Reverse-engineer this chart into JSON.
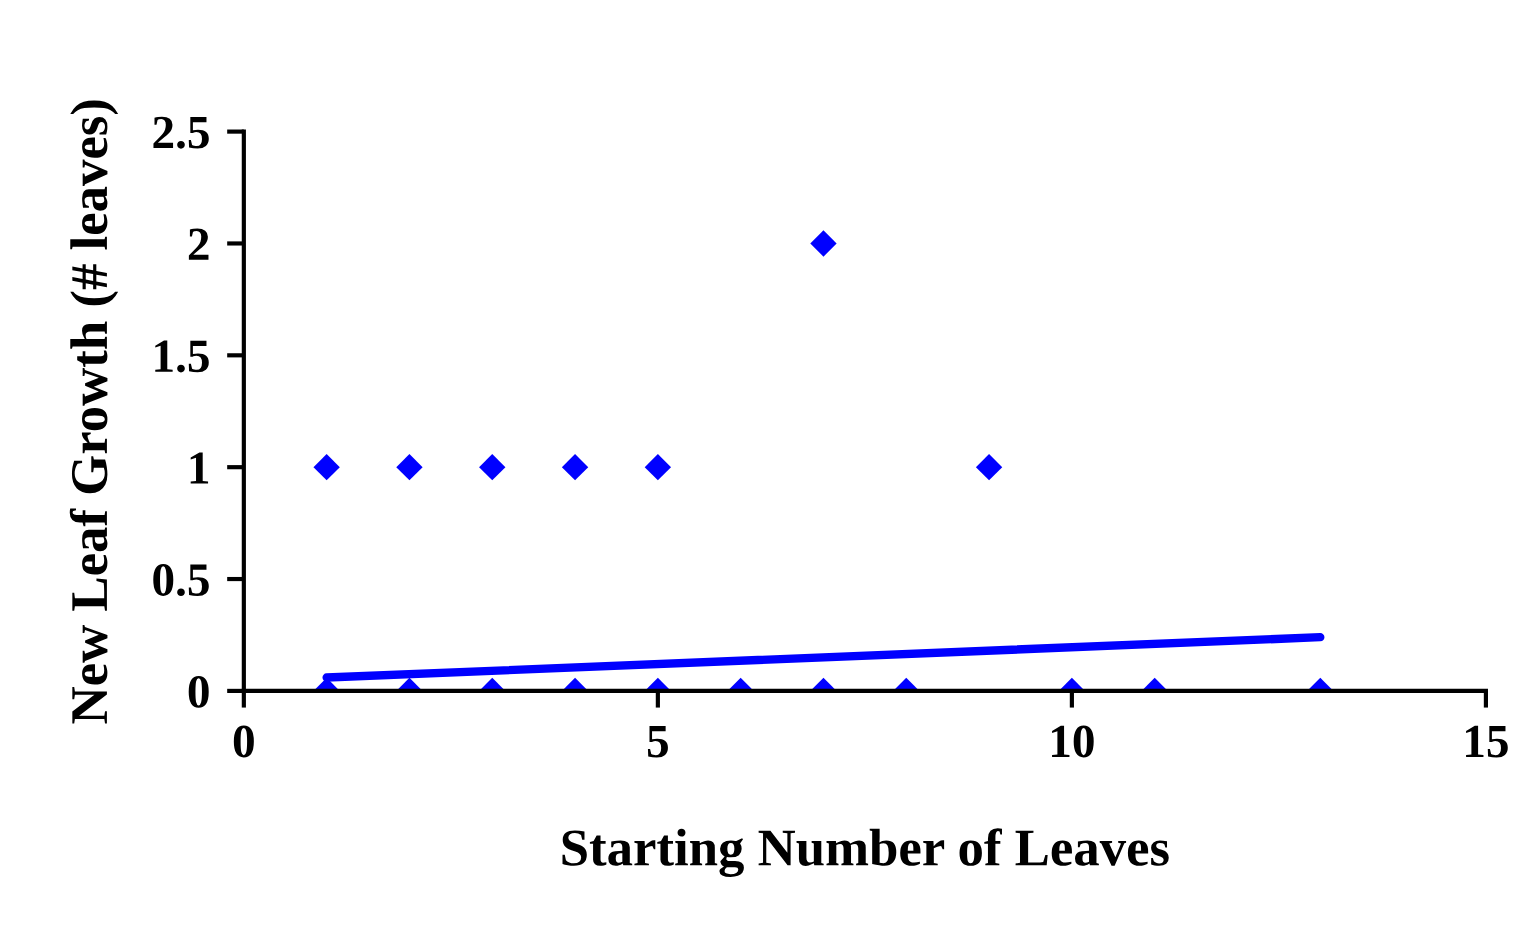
{
  "chart_data": {
    "type": "scatter",
    "xlabel": "Starting Number of Leaves",
    "ylabel": "New Leaf Growth (# leaves)",
    "xlim": [
      0,
      15
    ],
    "xticks": [
      0,
      5,
      10,
      15
    ],
    "ylim": [
      0,
      2.5
    ],
    "yticks": [
      0,
      0.5,
      1,
      1.5,
      2,
      2.5
    ],
    "grid": false,
    "legend": false,
    "marker": "diamond",
    "series": [
      {
        "color": "#0000ff",
        "x": [
          1,
          2,
          3,
          4,
          5,
          9,
          7,
          1,
          2,
          3,
          4,
          5,
          6,
          7,
          8,
          10,
          11,
          13
        ],
        "values": [
          1,
          1,
          1,
          1,
          1,
          1,
          2,
          0,
          0,
          0,
          0,
          0,
          0,
          0,
          0,
          0,
          0,
          0
        ]
      },
      {
        "type": "line",
        "color": "#0000ff",
        "x": [
          1,
          13
        ],
        "values": [
          0.06,
          0.24
        ],
        "line_style": "solid",
        "marker": "none"
      }
    ]
  }
}
